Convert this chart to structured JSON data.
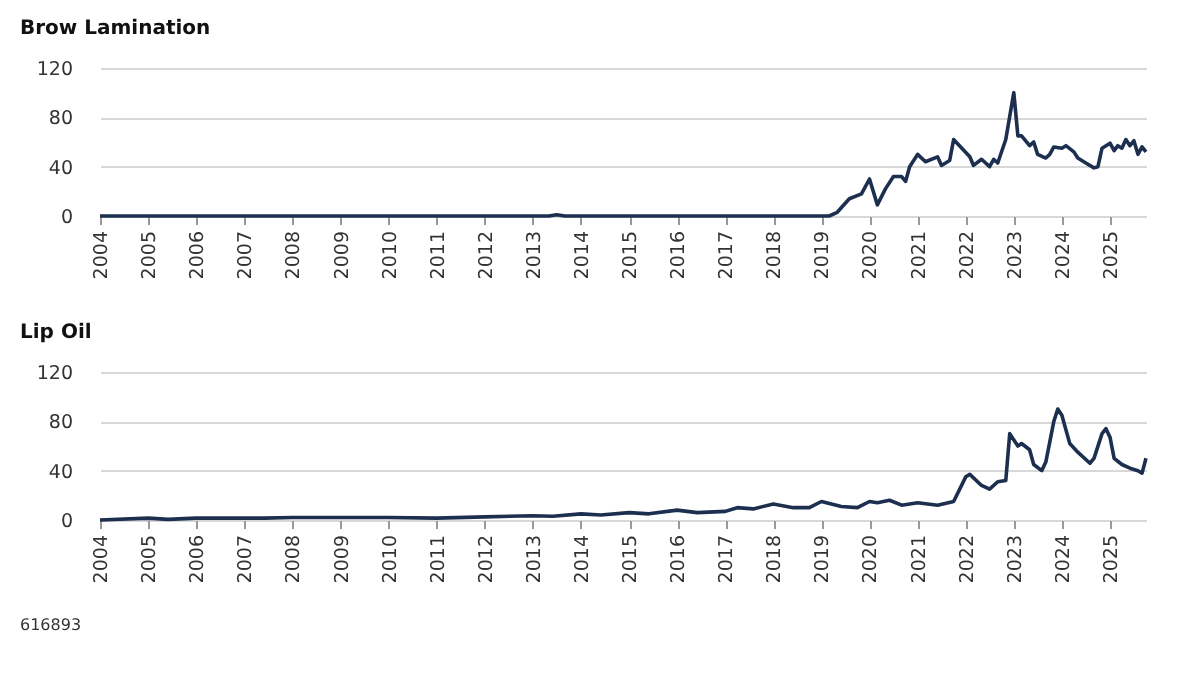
{
  "chart_data": [
    {
      "type": "line",
      "title": "Brow Lamination",
      "color": "#1c2f4f",
      "grid": "y",
      "x": [
        "2004-01",
        "2013-05",
        "2013-07",
        "2013-09",
        "2019-03",
        "2019-05",
        "2019-08",
        "2019-11",
        "2020-01",
        "2020-03",
        "2020-05",
        "2020-07",
        "2020-09",
        "2020-10",
        "2020-11",
        "2021-01",
        "2021-03",
        "2021-06",
        "2021-07",
        "2021-09",
        "2021-10",
        "2022-02",
        "2022-03",
        "2022-05",
        "2022-07",
        "2022-08",
        "2022-09",
        "2022-11",
        "2023-01",
        "2023-02",
        "2023-03",
        "2023-05",
        "2023-06",
        "2023-07",
        "2023-09",
        "2023-10",
        "2023-11",
        "2024-01",
        "2024-02",
        "2024-04",
        "2024-05",
        "2024-07",
        "2024-09",
        "2024-10",
        "2024-11",
        "2025-01",
        "2025-02",
        "2025-03",
        "2025-04",
        "2025-05",
        "2025-06",
        "2025-07",
        "2025-08",
        "2025-09",
        "2025-10"
      ],
      "values": [
        0,
        0,
        1,
        0,
        0,
        3,
        14,
        18,
        30,
        9,
        22,
        32,
        32,
        28,
        40,
        50,
        44,
        48,
        41,
        45,
        62,
        48,
        41,
        46,
        40,
        46,
        43,
        62,
        100,
        65,
        65,
        57,
        60,
        50,
        47,
        50,
        56,
        55,
        57,
        52,
        47,
        43,
        39,
        40,
        55,
        59,
        53,
        57,
        55,
        62,
        57,
        61,
        50,
        56,
        52
      ],
      "xlim": [
        "2004-01",
        "2025-10"
      ],
      "xticks": [
        "2004",
        "2005",
        "2006",
        "2007",
        "2008",
        "2009",
        "2010",
        "2011",
        "2012",
        "2013",
        "2014",
        "2015",
        "2016",
        "2017",
        "2018",
        "2019",
        "2020",
        "2021",
        "2022",
        "2023",
        "2024",
        "2025"
      ],
      "ylim": [
        0,
        120
      ],
      "yticks": [
        0,
        40,
        80,
        120
      ]
    },
    {
      "type": "line",
      "title": "Lip Oil",
      "color": "#1c2f4f",
      "grid": "y",
      "annotations": [
        "616893"
      ],
      "x": [
        "2004-01",
        "2005-01",
        "2005-06",
        "2006-01",
        "2007-06",
        "2008-01",
        "2009-01",
        "2010-01",
        "2011-01",
        "2012-01",
        "2013-01",
        "2013-06",
        "2014-01",
        "2014-06",
        "2015-01",
        "2015-06",
        "2016-01",
        "2016-06",
        "2017-01",
        "2017-04",
        "2017-08",
        "2018-01",
        "2018-06",
        "2018-10",
        "2019-01",
        "2019-06",
        "2019-10",
        "2020-01",
        "2020-03",
        "2020-06",
        "2020-09",
        "2021-01",
        "2021-06",
        "2021-10",
        "2022-01",
        "2022-02",
        "2022-05",
        "2022-07",
        "2022-09",
        "2022-11",
        "2022-12",
        "2023-02",
        "2023-03",
        "2023-05",
        "2023-06",
        "2023-08",
        "2023-09",
        "2023-11",
        "2023-12",
        "2024-01",
        "2024-03",
        "2024-05",
        "2024-08",
        "2024-09",
        "2024-11",
        "2024-12",
        "2025-01",
        "2025-02",
        "2025-04",
        "2025-06",
        "2025-08",
        "2025-09",
        "2025-10"
      ],
      "values": [
        0,
        1.5,
        0.5,
        1.5,
        1.5,
        2,
        2,
        2,
        1.5,
        2.5,
        3.5,
        3,
        5,
        4,
        6,
        5,
        8,
        6,
        7,
        10,
        9,
        13,
        10,
        10,
        15,
        11,
        10,
        15,
        14,
        16,
        12,
        14,
        12,
        15,
        35,
        37,
        28,
        25,
        31,
        32,
        70,
        60,
        62,
        57,
        45,
        40,
        47,
        80,
        90,
        85,
        62,
        55,
        46,
        50,
        70,
        74,
        67,
        50,
        45,
        42,
        40,
        38,
        50
      ],
      "xlim": [
        "2004-01",
        "2025-10"
      ],
      "xticks": [
        "2004",
        "2005",
        "2006",
        "2007",
        "2008",
        "2009",
        "2010",
        "2011",
        "2012",
        "2013",
        "2014",
        "2015",
        "2016",
        "2017",
        "2018",
        "2019",
        "2020",
        "2021",
        "2022",
        "2023",
        "2024",
        "2025"
      ],
      "ylim": [
        0,
        120
      ],
      "yticks": [
        0,
        40,
        80,
        120
      ]
    }
  ]
}
